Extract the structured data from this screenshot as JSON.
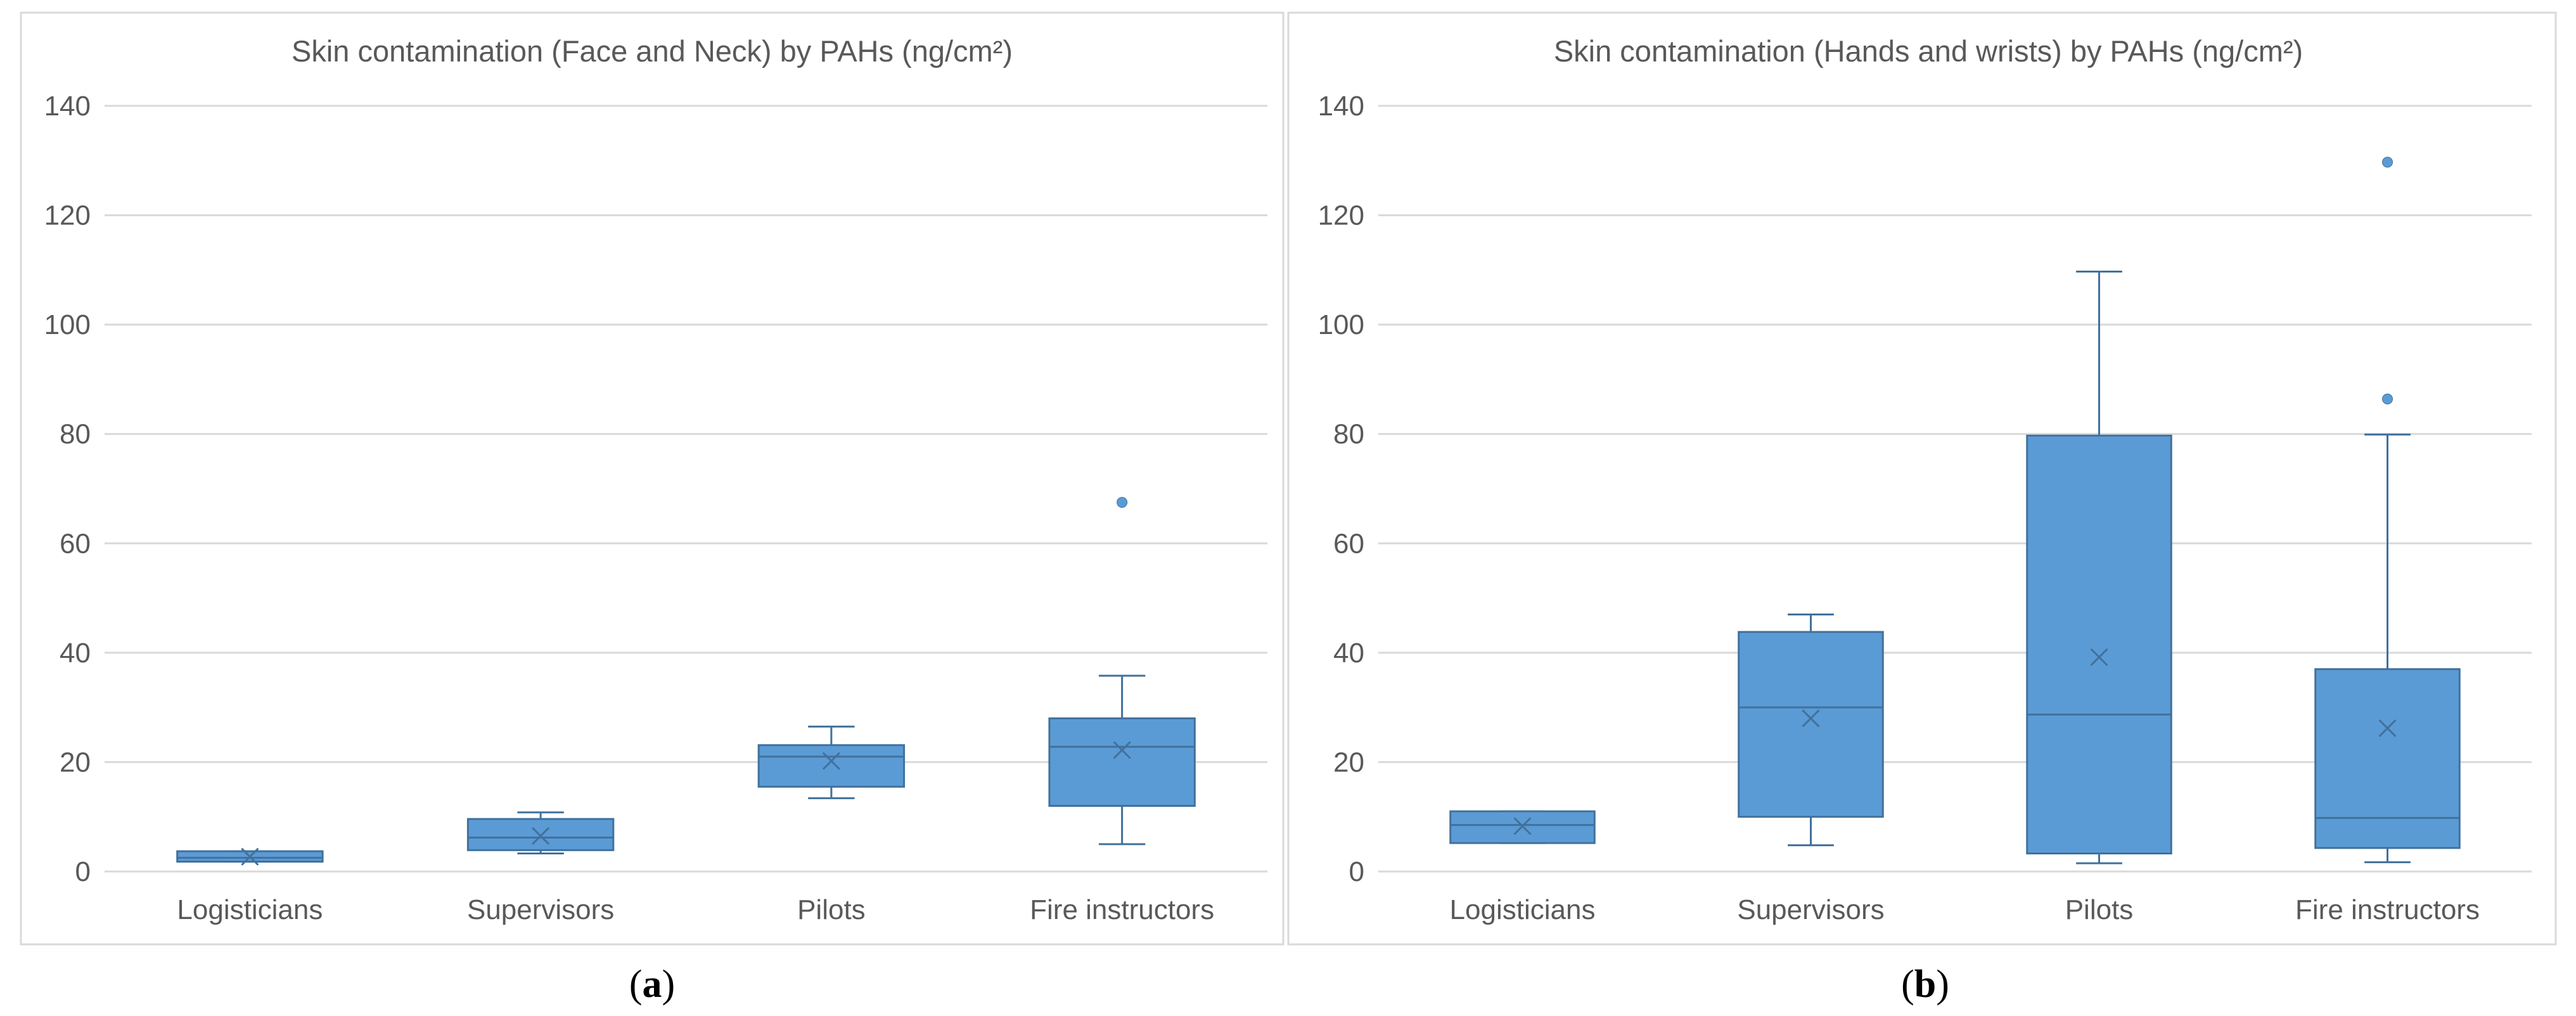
{
  "chart_data": [
    {
      "type": "box",
      "title": "Skin contamination (Face and Neck) by PAHs (ng/cm²)",
      "panel_label": "a",
      "categories": [
        "Logisticians",
        "Supervisors",
        "Pilots",
        "Fire instructors"
      ],
      "ylim": [
        0,
        140
      ],
      "yticks": [
        0,
        20,
        40,
        60,
        80,
        100,
        120,
        140
      ],
      "grid": true,
      "color": "#5B9BD5",
      "edge_color": "#41719C",
      "boxes": [
        {
          "category": "Logisticians",
          "whisker_low": 1.8,
          "q1": 1.8,
          "median": 2.5,
          "q3": 3.7,
          "whisker_high": 3.7,
          "mean": 2.7,
          "outliers": []
        },
        {
          "category": "Supervisors",
          "whisker_low": 3.3,
          "q1": 3.9,
          "median": 6.2,
          "q3": 9.6,
          "whisker_high": 10.8,
          "mean": 6.5,
          "outliers": []
        },
        {
          "category": "Pilots",
          "whisker_low": 13.4,
          "q1": 15.5,
          "median": 21.0,
          "q3": 23.1,
          "whisker_high": 26.5,
          "mean": 20.2,
          "outliers": []
        },
        {
          "category": "Fire instructors",
          "whisker_low": 5.0,
          "q1": 12.0,
          "median": 22.8,
          "q3": 28.0,
          "whisker_high": 35.8,
          "mean": 22.2,
          "outliers": [
            67.5
          ]
        }
      ]
    },
    {
      "type": "box",
      "title": "Skin contamination (Hands and wrists) by PAHs (ng/cm²)",
      "panel_label": "b",
      "categories": [
        "Logisticians",
        "Supervisors",
        "Pilots",
        "Fire instructors"
      ],
      "ylim": [
        0,
        140
      ],
      "yticks": [
        0,
        20,
        40,
        60,
        80,
        100,
        120,
        140
      ],
      "grid": true,
      "color": "#5B9BD5",
      "edge_color": "#41719C",
      "boxes": [
        {
          "category": "Logisticians",
          "whisker_low": 5.2,
          "q1": 5.2,
          "median": 8.5,
          "q3": 11.0,
          "whisker_high": 11.0,
          "mean": 8.3,
          "outliers": []
        },
        {
          "category": "Supervisors",
          "whisker_low": 4.8,
          "q1": 10.0,
          "median": 30.0,
          "q3": 43.8,
          "whisker_high": 47.0,
          "mean": 28.0,
          "outliers": []
        },
        {
          "category": "Pilots",
          "whisker_low": 1.5,
          "q1": 3.3,
          "median": 28.7,
          "q3": 79.7,
          "whisker_high": 109.7,
          "mean": 39.2,
          "outliers": []
        },
        {
          "category": "Fire instructors",
          "whisker_low": 1.7,
          "q1": 4.3,
          "median": 9.8,
          "q3": 37.0,
          "whisker_high": 79.9,
          "mean": 26.2,
          "outliers": [
            86.4,
            129.7
          ]
        }
      ]
    }
  ]
}
